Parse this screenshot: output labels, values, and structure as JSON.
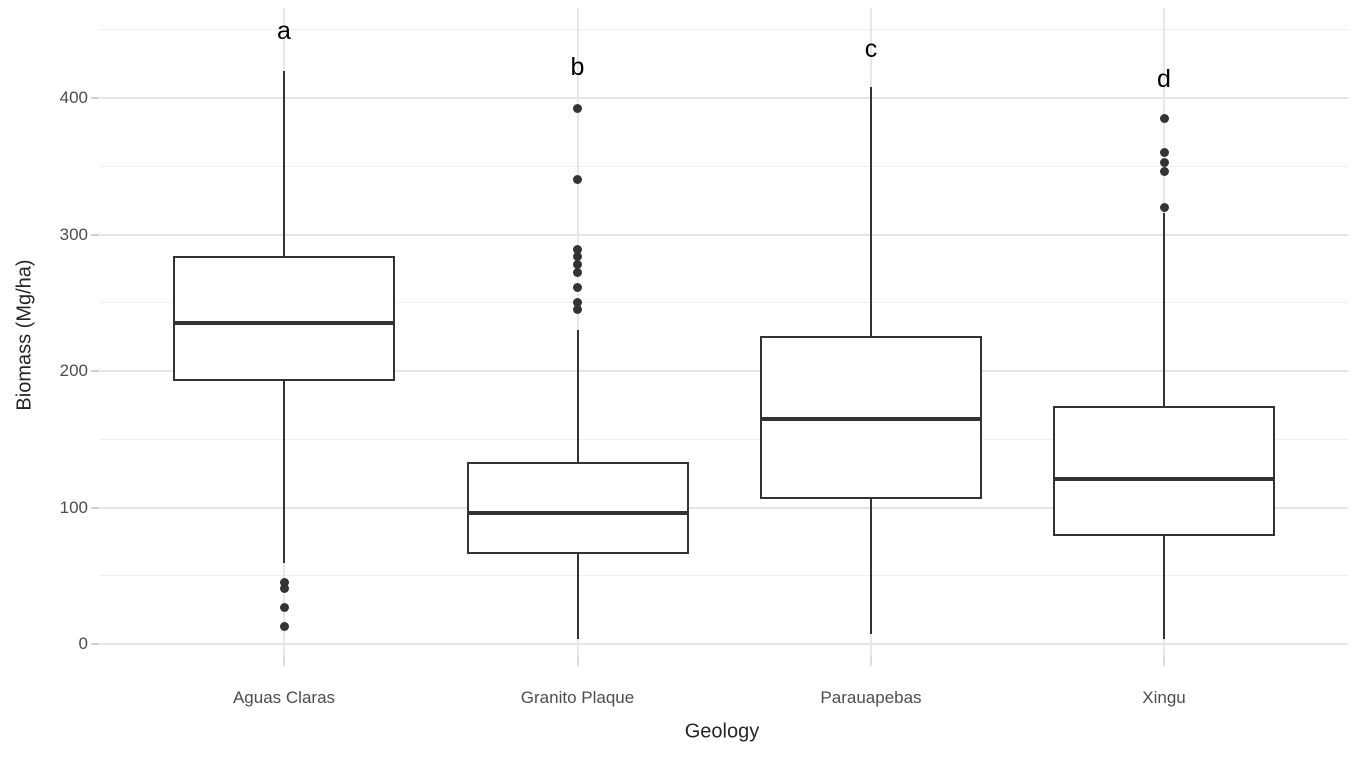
{
  "chart_data": {
    "type": "boxplot",
    "title": "",
    "xlabel": "Geology",
    "ylabel": "Biomass (Mg/ha)",
    "y_ticks": [
      0,
      100,
      200,
      300,
      400
    ],
    "y_minor_ticks": [
      50,
      150,
      250,
      350,
      450
    ],
    "ylim": [
      -9,
      466
    ],
    "grid": "horizontal major+minor, vertical major per category, no panel border, no legend",
    "legend_position": "none",
    "categories": [
      "Aguas Claras",
      "Granito Plaque",
      "Parauapebas",
      "Xingu"
    ],
    "series": [
      {
        "category": "Aguas Claras",
        "letter": "a",
        "letter_y": 448,
        "whisker_low": 59,
        "q1": 193,
        "median": 235,
        "q3": 284,
        "whisker_high": 420,
        "outliers": [
          45,
          41,
          27,
          13
        ]
      },
      {
        "category": "Granito Plaque",
        "letter": "b",
        "letter_y": 422,
        "whisker_low": 4,
        "q1": 66,
        "median": 96,
        "q3": 133,
        "whisker_high": 230,
        "outliers": [
          392,
          340,
          289,
          284,
          278,
          272,
          261,
          250,
          245
        ]
      },
      {
        "category": "Parauapebas",
        "letter": "c",
        "letter_y": 435,
        "whisker_low": 7,
        "q1": 106,
        "median": 165,
        "q3": 226,
        "whisker_high": 408,
        "outliers": []
      },
      {
        "category": "Xingu",
        "letter": "d",
        "letter_y": 413,
        "whisker_low": 4,
        "q1": 79,
        "median": 121,
        "q3": 174,
        "whisker_high": 316,
        "outliers": [
          385,
          360,
          353,
          346,
          320
        ]
      }
    ],
    "colors": {
      "background": "#ffffff",
      "box_border": "#333333",
      "median_line": "#333333",
      "whisker": "#333333",
      "outlier_dot": "#333333",
      "grid_major": "#e4e4e4",
      "grid_minor": "#efefef",
      "tick_text": "#4d4d4d",
      "axis_title_text": "#262626",
      "letter_text": "#000000"
    }
  }
}
